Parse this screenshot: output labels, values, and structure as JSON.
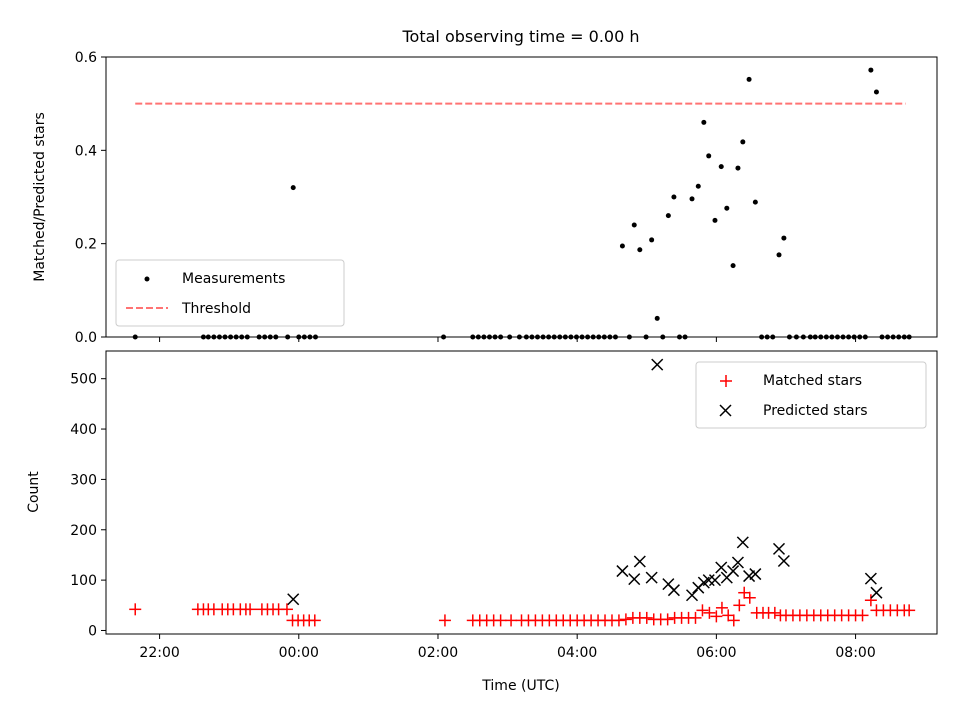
{
  "chart_data": {
    "title": "Total observing time = 0.00 h",
    "xlabel": "Time (UTC)",
    "x_unit": "hour of day (UTC), values past 24 belong to the following day",
    "x_ticks": [
      {
        "value": 22,
        "label": "22:00"
      },
      {
        "value": 24,
        "label": "00:00"
      },
      {
        "value": 26,
        "label": "02:00"
      },
      {
        "value": 28,
        "label": "04:00"
      },
      {
        "value": 30,
        "label": "06:00"
      },
      {
        "value": 32,
        "label": "08:00"
      }
    ],
    "xlim": [
      21.23,
      33.17
    ],
    "grid": false,
    "panels": [
      {
        "type": "scatter",
        "ylabel": "Matched/Predicted stars",
        "ylim": [
          0,
          0.6
        ],
        "y_ticks": [
          "0.0",
          "0.2",
          "0.4",
          "0.6"
        ],
        "legend_position": "lower-left",
        "series": [
          {
            "name": "Measurements",
            "marker": "dot",
            "color": "#000000",
            "points": [
              [
                21.65,
                0.0
              ],
              [
                22.63,
                0.0
              ],
              [
                22.7,
                0.0
              ],
              [
                22.78,
                0.0
              ],
              [
                22.86,
                0.0
              ],
              [
                22.94,
                0.0
              ],
              [
                23.02,
                0.0
              ],
              [
                23.1,
                0.0
              ],
              [
                23.18,
                0.0
              ],
              [
                23.26,
                0.0
              ],
              [
                23.43,
                0.0
              ],
              [
                23.51,
                0.0
              ],
              [
                23.59,
                0.0
              ],
              [
                23.67,
                0.0
              ],
              [
                23.84,
                0.0
              ],
              [
                23.92,
                0.32
              ],
              [
                24.0,
                0.0
              ],
              [
                24.08,
                0.0
              ],
              [
                24.16,
                0.0
              ],
              [
                24.24,
                0.0
              ],
              [
                26.08,
                0.0
              ],
              [
                26.5,
                0.0
              ],
              [
                26.58,
                0.0
              ],
              [
                26.66,
                0.0
              ],
              [
                26.74,
                0.0
              ],
              [
                26.82,
                0.0
              ],
              [
                26.9,
                0.0
              ],
              [
                27.03,
                0.0
              ],
              [
                27.17,
                0.0
              ],
              [
                27.27,
                0.0
              ],
              [
                27.35,
                0.0
              ],
              [
                27.43,
                0.0
              ],
              [
                27.51,
                0.0
              ],
              [
                27.59,
                0.0
              ],
              [
                27.67,
                0.0
              ],
              [
                27.75,
                0.0
              ],
              [
                27.83,
                0.0
              ],
              [
                27.91,
                0.0
              ],
              [
                27.99,
                0.0
              ],
              [
                28.07,
                0.0
              ],
              [
                28.15,
                0.0
              ],
              [
                28.23,
                0.0
              ],
              [
                28.31,
                0.0
              ],
              [
                28.39,
                0.0
              ],
              [
                28.47,
                0.0
              ],
              [
                28.55,
                0.0
              ],
              [
                28.65,
                0.195
              ],
              [
                28.75,
                0.0
              ],
              [
                28.82,
                0.24
              ],
              [
                28.9,
                0.187
              ],
              [
                28.99,
                0.0
              ],
              [
                29.07,
                0.208
              ],
              [
                29.15,
                0.04
              ],
              [
                29.23,
                0.0
              ],
              [
                29.31,
                0.26
              ],
              [
                29.39,
                0.3
              ],
              [
                29.47,
                0.0
              ],
              [
                29.55,
                0.0
              ],
              [
                29.65,
                0.296
              ],
              [
                29.74,
                0.323
              ],
              [
                29.82,
                0.46
              ],
              [
                29.89,
                0.388
              ],
              [
                29.98,
                0.25
              ],
              [
                30.07,
                0.365
              ],
              [
                30.15,
                0.276
              ],
              [
                30.24,
                0.153
              ],
              [
                30.31,
                0.362
              ],
              [
                30.38,
                0.418
              ],
              [
                30.47,
                0.552
              ],
              [
                30.56,
                0.289
              ],
              [
                30.65,
                0.0
              ],
              [
                30.73,
                0.0
              ],
              [
                30.81,
                0.0
              ],
              [
                30.9,
                0.176
              ],
              [
                30.97,
                0.212
              ],
              [
                31.05,
                0.0
              ],
              [
                31.15,
                0.0
              ],
              [
                31.25,
                0.0
              ],
              [
                31.35,
                0.0
              ],
              [
                31.42,
                0.0
              ],
              [
                31.5,
                0.0
              ],
              [
                31.58,
                0.0
              ],
              [
                31.66,
                0.0
              ],
              [
                31.74,
                0.0
              ],
              [
                31.82,
                0.0
              ],
              [
                31.9,
                0.0
              ],
              [
                31.98,
                0.0
              ],
              [
                32.06,
                0.0
              ],
              [
                32.14,
                0.0
              ],
              [
                32.22,
                0.572
              ],
              [
                32.3,
                0.525
              ],
              [
                32.38,
                0.0
              ],
              [
                32.46,
                0.0
              ],
              [
                32.54,
                0.0
              ],
              [
                32.62,
                0.0
              ],
              [
                32.7,
                0.0
              ],
              [
                32.77,
                0.0
              ]
            ]
          },
          {
            "name": "Threshold",
            "style": "dashed-line",
            "color": "#ff7373",
            "points": [
              [
                21.65,
                0.5
              ],
              [
                32.72,
                0.5
              ]
            ]
          }
        ]
      },
      {
        "type": "scatter",
        "ylabel": "Count",
        "ylim": [
          -7,
          555
        ],
        "y_ticks": [
          "0",
          "100",
          "200",
          "300",
          "400",
          "500"
        ],
        "legend_position": "upper-right",
        "series": [
          {
            "name": "Matched stars",
            "marker": "plus",
            "color": "#ff0000",
            "points": [
              [
                21.65,
                42
              ],
              [
                22.55,
                42
              ],
              [
                22.63,
                42
              ],
              [
                22.7,
                42
              ],
              [
                22.78,
                42
              ],
              [
                22.9,
                42
              ],
              [
                22.98,
                42
              ],
              [
                23.06,
                42
              ],
              [
                23.16,
                42
              ],
              [
                23.24,
                42
              ],
              [
                23.3,
                42
              ],
              [
                23.47,
                42
              ],
              [
                23.55,
                42
              ],
              [
                23.63,
                42
              ],
              [
                23.71,
                42
              ],
              [
                23.83,
                42
              ],
              [
                23.91,
                20
              ],
              [
                23.99,
                20
              ],
              [
                24.07,
                20
              ],
              [
                24.15,
                20
              ],
              [
                24.23,
                20
              ],
              [
                26.1,
                20
              ],
              [
                26.5,
                20
              ],
              [
                26.6,
                20
              ],
              [
                26.7,
                20
              ],
              [
                26.8,
                20
              ],
              [
                26.9,
                20
              ],
              [
                27.05,
                20
              ],
              [
                27.2,
                20
              ],
              [
                27.3,
                20
              ],
              [
                27.4,
                20
              ],
              [
                27.5,
                20
              ],
              [
                27.6,
                20
              ],
              [
                27.7,
                20
              ],
              [
                27.8,
                20
              ],
              [
                27.9,
                20
              ],
              [
                28.0,
                20
              ],
              [
                28.1,
                20
              ],
              [
                28.2,
                20
              ],
              [
                28.3,
                20
              ],
              [
                28.4,
                20
              ],
              [
                28.5,
                20
              ],
              [
                28.6,
                20
              ],
              [
                28.7,
                22
              ],
              [
                28.8,
                25
              ],
              [
                28.9,
                25
              ],
              [
                29.0,
                25
              ],
              [
                29.1,
                22
              ],
              [
                29.2,
                22
              ],
              [
                29.3,
                22
              ],
              [
                29.4,
                25
              ],
              [
                29.5,
                25
              ],
              [
                29.6,
                25
              ],
              [
                29.7,
                25
              ],
              [
                29.8,
                40
              ],
              [
                29.9,
                35
              ],
              [
                30.0,
                28
              ],
              [
                30.08,
                45
              ],
              [
                30.17,
                30
              ],
              [
                30.25,
                20
              ],
              [
                30.33,
                50
              ],
              [
                30.4,
                75
              ],
              [
                30.48,
                65
              ],
              [
                30.58,
                35
              ],
              [
                30.67,
                35
              ],
              [
                30.75,
                35
              ],
              [
                30.84,
                35
              ],
              [
                30.92,
                30
              ],
              [
                31.0,
                30
              ],
              [
                31.1,
                30
              ],
              [
                31.2,
                30
              ],
              [
                31.3,
                30
              ],
              [
                31.4,
                30
              ],
              [
                31.5,
                30
              ],
              [
                31.6,
                30
              ],
              [
                31.7,
                30
              ],
              [
                31.8,
                30
              ],
              [
                31.9,
                30
              ],
              [
                32.0,
                30
              ],
              [
                32.1,
                30
              ],
              [
                32.22,
                60
              ],
              [
                32.3,
                40
              ],
              [
                32.4,
                40
              ],
              [
                32.5,
                40
              ],
              [
                32.6,
                40
              ],
              [
                32.7,
                40
              ],
              [
                32.77,
                40
              ]
            ]
          },
          {
            "name": "Predicted stars",
            "marker": "x",
            "color": "#000000",
            "points": [
              [
                23.92,
                62
              ],
              [
                28.65,
                118
              ],
              [
                28.82,
                102
              ],
              [
                28.9,
                137
              ],
              [
                29.07,
                105
              ],
              [
                29.15,
                528
              ],
              [
                29.31,
                92
              ],
              [
                29.39,
                80
              ],
              [
                29.65,
                70
              ],
              [
                29.74,
                85
              ],
              [
                29.82,
                95
              ],
              [
                29.89,
                100
              ],
              [
                29.98,
                100
              ],
              [
                30.07,
                125
              ],
              [
                30.15,
                105
              ],
              [
                30.24,
                118
              ],
              [
                30.31,
                135
              ],
              [
                30.38,
                175
              ],
              [
                30.47,
                108
              ],
              [
                30.56,
                112
              ],
              [
                30.9,
                162
              ],
              [
                30.97,
                138
              ],
              [
                32.22,
                103
              ],
              [
                32.3,
                75
              ]
            ]
          }
        ]
      }
    ]
  }
}
